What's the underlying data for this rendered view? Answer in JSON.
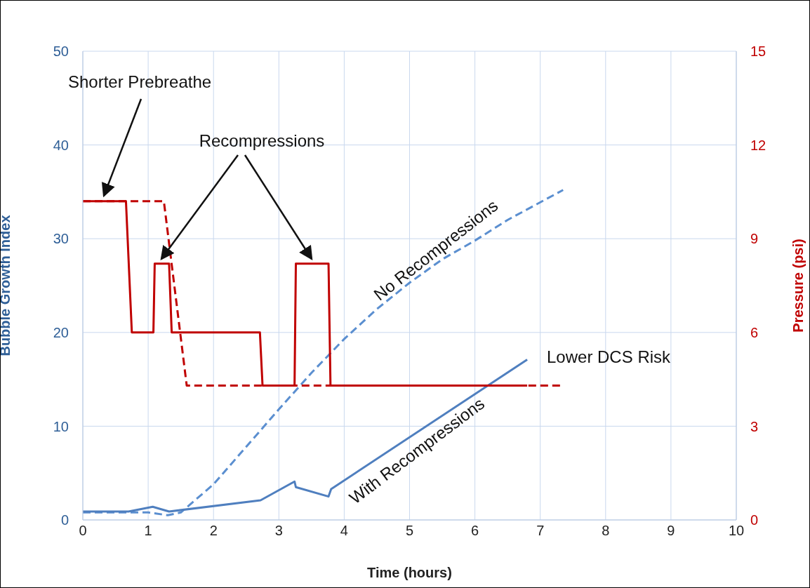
{
  "chart_data": {
    "type": "line",
    "xlabel": "Time (hours)",
    "ylabel": "Bubble Growth Index",
    "y2label": "Pressure (psi)",
    "xlim": [
      0,
      10
    ],
    "xticks": [
      0,
      1,
      2,
      3,
      4,
      5,
      6,
      7,
      8,
      9,
      10
    ],
    "ylim": [
      0,
      50
    ],
    "yticks": [
      0,
      10,
      20,
      30,
      40,
      50
    ],
    "y2lim": [
      0,
      15
    ],
    "y2ticks": [
      0,
      3,
      6,
      9,
      12,
      15
    ],
    "grid": true,
    "annotations": [
      "Shorter Prebreathe",
      "Recompressions",
      "Lower DCS Risk"
    ],
    "series": [
      {
        "name": "No Recompressions",
        "color": "#5b8fd0",
        "line_style": "dashed",
        "axis": "y",
        "x": [
          0,
          1.0,
          1.3,
          1.5,
          2,
          2.5,
          3,
          3.5,
          4,
          4.5,
          5,
          5.5,
          6,
          6.5,
          7.35
        ],
        "values": [
          0.8,
          0.8,
          0.5,
          0.8,
          3.8,
          7.8,
          11.8,
          15.7,
          19.3,
          22.5,
          25.3,
          27.8,
          29.8,
          32,
          35.2
        ]
      },
      {
        "name": "With Recompressions",
        "color": "#4f7fbf",
        "line_style": "solid",
        "axis": "y",
        "x": [
          0,
          0.7,
          1.07,
          1.32,
          2.72,
          3.24,
          3.26,
          3.76,
          3.8,
          6.8
        ],
        "values": [
          0.9,
          0.9,
          1.4,
          0.9,
          2.1,
          4.1,
          3.5,
          2.5,
          3.3,
          17.1
        ]
      },
      {
        "color": "#c00000",
        "line_style": "dashed",
        "axis": "y2",
        "x": [
          0,
          1.24,
          1.59,
          7.35
        ],
        "values": [
          10.2,
          10.2,
          4.3,
          4.3
        ]
      },
      {
        "color": "#c00000",
        "line_style": "solid",
        "axis": "y2",
        "x": [
          0,
          0.66,
          0.75,
          1.08,
          1.1,
          1.32,
          1.36,
          2.71,
          2.75,
          3.24,
          3.26,
          3.76,
          3.79,
          6.8
        ],
        "values": [
          10.2,
          10.2,
          6,
          6,
          8.2,
          8.2,
          6,
          6,
          4.3,
          4.3,
          8.2,
          8.2,
          4.3,
          4.3
        ]
      }
    ]
  }
}
